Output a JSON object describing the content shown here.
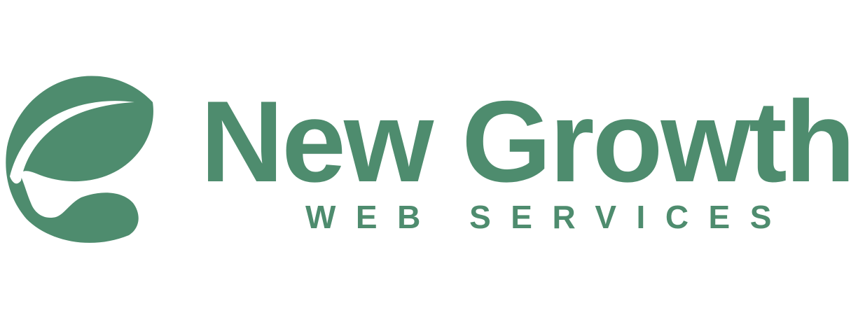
{
  "brand": {
    "name": "New Growth",
    "tagline": "WEB SERVICES",
    "color": "#4e8c6e",
    "background": "#ffffff",
    "mark_icon": "leaf-sprout-icon"
  }
}
